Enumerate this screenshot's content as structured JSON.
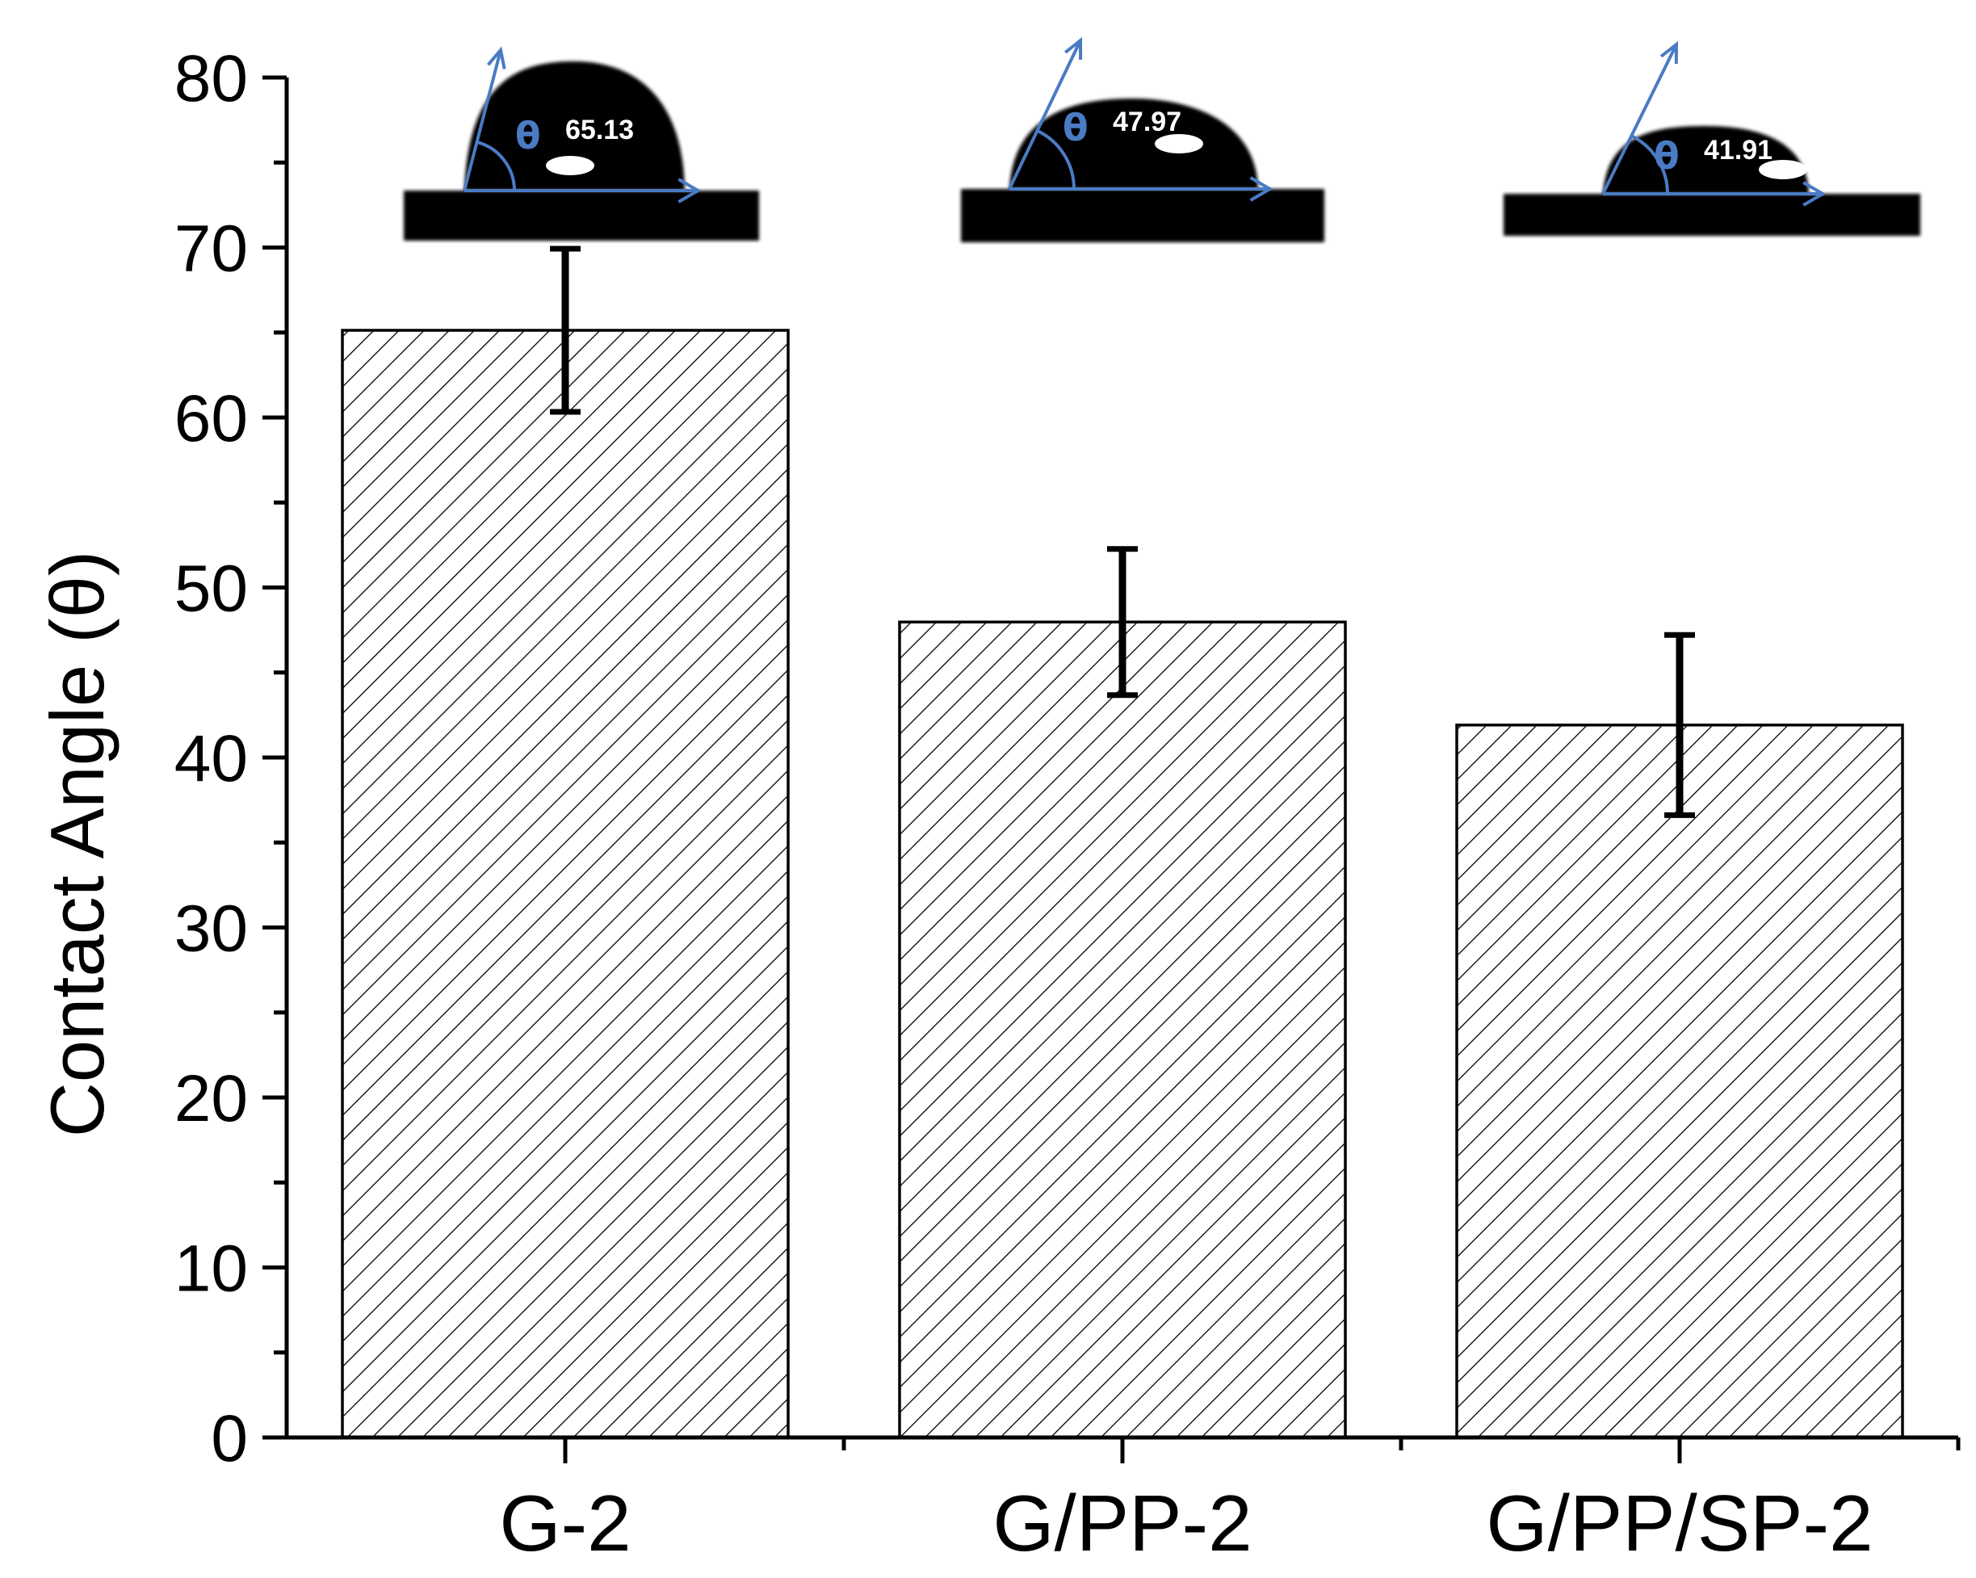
{
  "chart_data": {
    "type": "bar",
    "categories": [
      "G-2",
      "G/PP-2",
      "G/PP/SP-2"
    ],
    "values": [
      65.13,
      47.97,
      41.91
    ],
    "error": [
      4.8,
      4.3,
      5.3
    ],
    "ylabel": "Contact Angle (θ)",
    "xlabel": "",
    "ylim": [
      0,
      80
    ],
    "yticks": [
      0,
      10,
      20,
      30,
      40,
      50,
      60,
      70,
      80
    ],
    "grid": false,
    "bar_fill": "hatched",
    "insets": [
      {
        "theta_symbol": "θ",
        "angle_label": "65.13"
      },
      {
        "theta_symbol": "θ",
        "angle_label": "47.97"
      },
      {
        "theta_symbol": "θ",
        "angle_label": "41.91"
      }
    ]
  },
  "colors": {
    "axis": "#000000",
    "bar_edge": "#000000",
    "hatch": "#000000",
    "inset_arrow": "#4a7bc4",
    "droplet": "#000000"
  }
}
